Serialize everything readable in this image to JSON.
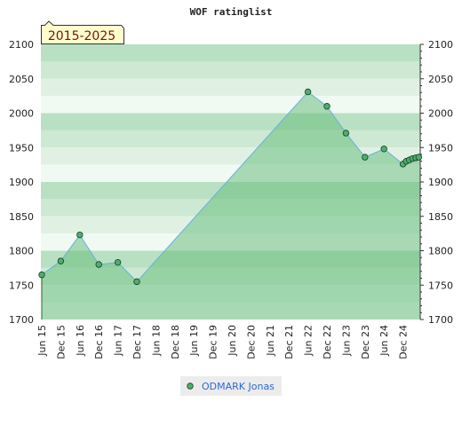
{
  "chart_data": {
    "type": "line",
    "title": "WOF ratinglist",
    "period_label": "2015-2025",
    "ylim": [
      1700,
      2100
    ],
    "y_ticks": [
      1700,
      1750,
      1800,
      1850,
      1900,
      1950,
      2000,
      2050,
      2100
    ],
    "x_tick_labels": [
      "Jun 15",
      "Dec 15",
      "Jun 16",
      "Dec 16",
      "Jun 17",
      "Dec 17",
      "Jun 18",
      "Dec 18",
      "Jun 19",
      "Dec 19",
      "Jun 20",
      "Dec 20",
      "Jun 21",
      "Dec 21",
      "Jun 22",
      "Dec 22",
      "Jun 23",
      "Dec 23",
      "Jun 24",
      "Dec 24"
    ],
    "grid": true,
    "legend_position": "bottom",
    "series": [
      {
        "name": "ODMARK Jonas",
        "color": "#6aaee0",
        "marker_color": "#4caf6e",
        "fill_color": "#6bbf80",
        "points": [
          {
            "x": 0.0,
            "y": 1765
          },
          {
            "x": 1.0,
            "y": 1785
          },
          {
            "x": 2.0,
            "y": 1823
          },
          {
            "x": 3.0,
            "y": 1780
          },
          {
            "x": 4.0,
            "y": 1783
          },
          {
            "x": 5.0,
            "y": 1755
          },
          {
            "x": 14.0,
            "y": 2031
          },
          {
            "x": 15.0,
            "y": 2010
          },
          {
            "x": 16.0,
            "y": 1971
          },
          {
            "x": 17.0,
            "y": 1936
          },
          {
            "x": 18.0,
            "y": 1948
          },
          {
            "x": 19.0,
            "y": 1926
          },
          {
            "x": 19.17,
            "y": 1930
          },
          {
            "x": 19.33,
            "y": 1932
          },
          {
            "x": 19.5,
            "y": 1934
          },
          {
            "x": 19.67,
            "y": 1935
          },
          {
            "x": 19.83,
            "y": 1936
          }
        ]
      }
    ]
  },
  "legend": {
    "items": [
      {
        "label": "ODMARK Jonas"
      }
    ]
  }
}
